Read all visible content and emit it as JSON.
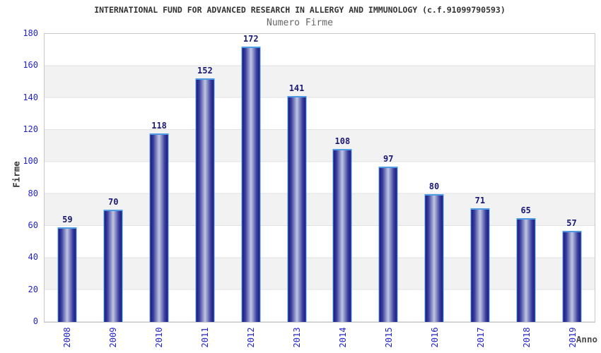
{
  "chart_data": {
    "type": "bar",
    "title": "INTERNATIONAL FUND FOR ADVANCED RESEARCH IN ALLERGY AND IMMUNOLOGY (c.f.91099790593)",
    "subtitle": "Numero Firme",
    "xlabel": "Anno",
    "ylabel": "Firme",
    "categories": [
      "2008",
      "2009",
      "2010",
      "2011",
      "2012",
      "2013",
      "2014",
      "2015",
      "2016",
      "2017",
      "2018",
      "2019"
    ],
    "values": [
      59,
      70,
      118,
      152,
      172,
      141,
      108,
      97,
      80,
      71,
      65,
      57
    ],
    "ylim": [
      0,
      180
    ],
    "y_ticks": [
      0,
      20,
      40,
      60,
      80,
      100,
      120,
      140,
      160,
      180
    ],
    "grid": "horizontal alternating bands every 20 units",
    "legend": "none",
    "colors": {
      "bar_edge_dark": "#191980",
      "bar_mid_dark": "#3a3f9e",
      "bar_center_light": "#c2c7e2",
      "bar_outline": "#4e9be4",
      "axis_tick_label": "#2222cc",
      "value_label": "#191975",
      "title_text": "#333333",
      "subtitle_text": "#666666",
      "band_gray": "#f2f2f2",
      "gridline": "#e2e2e2",
      "plot_border": "#c8c8c8"
    }
  }
}
